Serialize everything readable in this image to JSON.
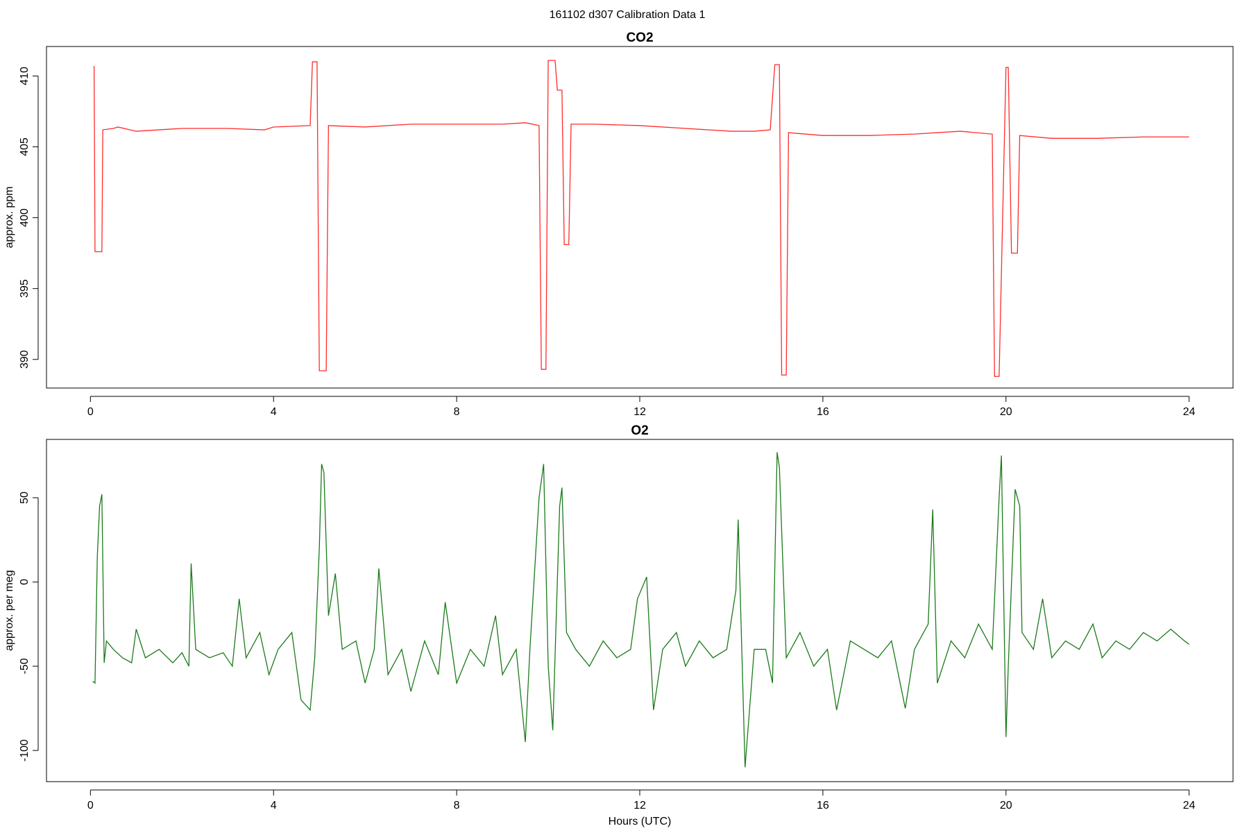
{
  "title": "161102   d307   Calibration Data 1",
  "chart_data": [
    {
      "type": "line",
      "title": "CO2",
      "ylabel": "approx. ppm",
      "color": "#ff2a2a",
      "x": [
        0.08,
        0.1,
        0.25,
        0.27,
        0.5,
        0.6,
        1.0,
        2.0,
        3.0,
        3.8,
        4.0,
        4.8,
        4.85,
        4.95,
        5.0,
        5.15,
        5.2,
        6,
        7,
        8,
        9,
        9.5,
        9.8,
        9.85,
        9.95,
        10.0,
        10.15,
        10.2,
        10.3,
        10.35,
        10.45,
        10.5,
        11,
        12,
        13,
        14,
        14.5,
        14.85,
        14.95,
        15.05,
        15.1,
        15.2,
        15.25,
        16,
        17,
        18,
        19,
        19.7,
        19.75,
        19.85,
        20.0,
        20.05,
        20.12,
        20.25,
        20.3,
        21,
        22,
        23,
        24
      ],
      "values": [
        410.7,
        397.6,
        397.6,
        406.2,
        406.3,
        406.4,
        406.1,
        406.3,
        406.3,
        406.2,
        406.4,
        406.5,
        411.0,
        411.0,
        389.2,
        389.2,
        406.5,
        406.4,
        406.6,
        406.6,
        406.6,
        406.7,
        406.5,
        389.3,
        389.3,
        411.1,
        411.1,
        409.0,
        409.0,
        398.1,
        398.1,
        406.6,
        406.6,
        406.5,
        406.3,
        406.1,
        406.1,
        406.2,
        410.8,
        410.8,
        388.9,
        388.9,
        406.0,
        405.8,
        405.8,
        405.9,
        406.1,
        405.9,
        388.8,
        388.8,
        410.6,
        410.6,
        397.5,
        397.5,
        405.8,
        405.6,
        405.6,
        405.7,
        405.7
      ],
      "xlim": [
        -0.96,
        24.96
      ],
      "xticks": [
        0,
        4,
        8,
        12,
        16,
        20,
        24
      ],
      "ylim": [
        387.98,
        412.08
      ],
      "yticks": [
        390,
        395,
        400,
        405,
        410
      ]
    },
    {
      "type": "line",
      "title": "O2",
      "ylabel": "approx. per meg",
      "xlabel": "Hours (UTC)",
      "color": "#1a7a1a",
      "x": [
        0.05,
        0.1,
        0.15,
        0.2,
        0.25,
        0.3,
        0.35,
        0.5,
        0.7,
        0.9,
        1.0,
        1.2,
        1.5,
        1.8,
        2.0,
        2.15,
        2.2,
        2.3,
        2.6,
        2.9,
        3.1,
        3.25,
        3.4,
        3.7,
        3.9,
        4.1,
        4.4,
        4.6,
        4.8,
        4.9,
        5.0,
        5.05,
        5.1,
        5.2,
        5.35,
        5.5,
        5.8,
        6.0,
        6.2,
        6.3,
        6.5,
        6.8,
        7.0,
        7.3,
        7.6,
        7.75,
        8.0,
        8.3,
        8.6,
        8.85,
        9.0,
        9.3,
        9.5,
        9.6,
        9.8,
        9.9,
        10.0,
        10.1,
        10.25,
        10.3,
        10.4,
        10.6,
        10.9,
        11.2,
        11.5,
        11.8,
        11.95,
        12.15,
        12.3,
        12.5,
        12.8,
        13.0,
        13.3,
        13.6,
        13.9,
        14.1,
        14.15,
        14.3,
        14.5,
        14.75,
        14.9,
        15.0,
        15.05,
        15.2,
        15.5,
        15.8,
        16.1,
        16.3,
        16.6,
        16.9,
        17.2,
        17.5,
        17.8,
        18.0,
        18.3,
        18.4,
        18.5,
        18.8,
        19.1,
        19.4,
        19.7,
        19.85,
        19.9,
        20.0,
        20.05,
        20.2,
        20.3,
        20.35,
        20.6,
        20.8,
        21.0,
        21.3,
        21.6,
        21.9,
        22.1,
        22.4,
        22.7,
        23.0,
        23.3,
        23.6,
        23.9,
        24.0
      ],
      "values": [
        -59,
        -60,
        15,
        45,
        52,
        -48,
        -35,
        -40,
        -45,
        -48,
        -28,
        -45,
        -40,
        -48,
        -42,
        -50,
        11,
        -40,
        -45,
        -42,
        -50,
        -10,
        -45,
        -30,
        -55,
        -40,
        -30,
        -70,
        -76,
        -45,
        20,
        70,
        65,
        -20,
        5,
        -40,
        -35,
        -60,
        -40,
        8,
        -55,
        -40,
        -65,
        -35,
        -55,
        -12,
        -60,
        -40,
        -50,
        -20,
        -55,
        -40,
        -95,
        -40,
        50,
        70,
        -50,
        -88,
        45,
        56,
        -30,
        -40,
        -50,
        -35,
        -45,
        -40,
        -10,
        3,
        -76,
        -40,
        -30,
        -50,
        -35,
        -45,
        -40,
        -5,
        37,
        -110,
        -40,
        -40,
        -60,
        77,
        68,
        -45,
        -30,
        -50,
        -40,
        -76,
        -35,
        -40,
        -45,
        -35,
        -75,
        -40,
        -25,
        43,
        -60,
        -35,
        -45,
        -25,
        -40,
        50,
        75,
        -92,
        -50,
        55,
        45,
        -30,
        -40,
        -10,
        -45,
        -35,
        -40,
        -25,
        -45,
        -35,
        -40,
        -30,
        -35,
        -28,
        -35,
        -37
      ],
      "xlim": [
        -0.96,
        24.96
      ],
      "xticks": [
        0,
        4,
        8,
        12,
        16,
        20,
        24
      ],
      "ylim": [
        -118.5,
        84.6
      ],
      "yticks": [
        -100,
        -50,
        0,
        50
      ]
    }
  ]
}
